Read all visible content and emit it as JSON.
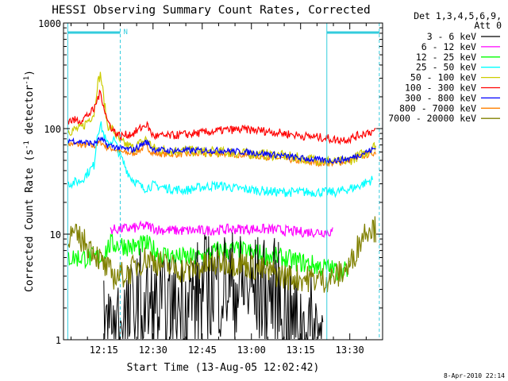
{
  "chart_data": {
    "type": "line",
    "title": "HESSI Observing Summary Count Rates, Corrected",
    "xlabel": "Start Time (13-Aug-05 12:02:42)",
    "ylabel_main": "Corrected Count Rate (s",
    "ylabel_sup1": "-1",
    "ylabel_mid": " detector",
    "ylabel_sup2": "-1",
    "ylabel_end": ")",
    "yscale": "log",
    "ylim": [
      1,
      1000
    ],
    "xlim": [
      "12:02:42",
      "13:40:00"
    ],
    "x_ticks": [
      "12:15",
      "12:30",
      "12:45",
      "13:00",
      "13:15",
      "13:30"
    ],
    "y_ticks": [
      "1",
      "10",
      "100",
      "1000"
    ],
    "grid": false,
    "legend_header": [
      "Det 1,3,4,5,6,9,",
      "Att 0"
    ],
    "legend_position": "right",
    "annotations": {
      "night_marker": "N",
      "night_intervals": [
        [
          "12:04",
          "12:20"
        ],
        [
          "13:23",
          "13:39"
        ]
      ],
      "boundary_dashed": [
        "12:20",
        "13:39"
      ],
      "boundary_solid": [
        "12:04",
        "13:23"
      ]
    },
    "footer_date": "8-Apr-2010 22:14",
    "series": [
      {
        "name": "3 - 6 keV",
        "color": "#000000",
        "x": [
          "12:15",
          "12:18",
          "12:22",
          "12:26",
          "12:30",
          "12:35",
          "12:40",
          "12:44",
          "12:48",
          "12:52",
          "12:56",
          "13:00",
          "13:04",
          "13:08",
          "13:12",
          "13:15",
          "13:19",
          "13:22"
        ],
        "y": [
          1.2,
          1.4,
          1.5,
          2.2,
          1.8,
          1.7,
          2.3,
          2.6,
          3.4,
          3.4,
          3.1,
          3.0,
          2.8,
          2.6,
          1.4,
          1.3,
          1.2,
          1.2
        ]
      },
      {
        "name": "6 - 12 keV",
        "color": "#ff00ff",
        "x": [
          "12:17",
          "12:20",
          "12:25",
          "12:28",
          "12:32",
          "12:38",
          "12:44",
          "12:50",
          "12:56",
          "13:02",
          "13:08",
          "13:14",
          "13:20",
          "13:25"
        ],
        "y": [
          11,
          11.2,
          11.5,
          12,
          11,
          10.8,
          10.8,
          11,
          11.2,
          11.2,
          11,
          10.5,
          10.5,
          10.5
        ]
      },
      {
        "name": "12 - 25 keV",
        "color": "#00ff00",
        "x": [
          "12:04",
          "12:10",
          "12:14",
          "12:17",
          "12:20",
          "12:24",
          "12:28",
          "12:32",
          "12:38",
          "12:44",
          "12:50",
          "12:56",
          "13:02",
          "13:08",
          "13:14",
          "13:20",
          "13:26",
          "13:30"
        ],
        "y": [
          6,
          6,
          6,
          8,
          8,
          7.5,
          8,
          6.5,
          6,
          6,
          7,
          7,
          6.5,
          6,
          5.5,
          5,
          4.5,
          4.5
        ]
      },
      {
        "name": "25 - 50 keV",
        "color": "#00ffff",
        "x": [
          "12:04",
          "12:08",
          "12:12",
          "12:13",
          "12:14",
          "12:16",
          "12:18",
          "12:20",
          "12:23",
          "12:27",
          "12:30",
          "12:35",
          "12:40",
          "12:45",
          "12:50",
          "12:56",
          "13:02",
          "13:08",
          "13:14",
          "13:20",
          "13:26",
          "13:32",
          "13:37"
        ],
        "y": [
          30,
          32,
          45,
          90,
          110,
          70,
          80,
          55,
          35,
          27,
          29,
          27,
          26,
          28,
          29,
          27,
          26,
          25,
          25,
          25,
          25,
          28,
          33
        ]
      },
      {
        "name": "50 - 100 keV",
        "color": "#cccc00",
        "x": [
          "12:04",
          "12:08",
          "12:12",
          "12:13",
          "12:14",
          "12:16",
          "12:18",
          "12:20",
          "12:24",
          "12:28",
          "12:30",
          "12:34",
          "12:40",
          "12:46",
          "12:52",
          "12:58",
          "13:04",
          "13:10",
          "13:16",
          "13:22",
          "13:26",
          "13:30",
          "13:35",
          "13:38"
        ],
        "y": [
          95,
          100,
          140,
          260,
          330,
          110,
          95,
          75,
          65,
          80,
          65,
          62,
          62,
          60,
          60,
          58,
          57,
          55,
          52,
          50,
          48,
          50,
          60,
          70
        ]
      },
      {
        "name": "100 - 300 keV",
        "color": "#ff0000",
        "x": [
          "12:04",
          "12:08",
          "12:12",
          "12:13",
          "12:14",
          "12:16",
          "12:18",
          "12:20",
          "12:24",
          "12:28",
          "12:30",
          "12:34",
          "12:40",
          "12:46",
          "12:52",
          "12:58",
          "13:04",
          "13:10",
          "13:16",
          "13:22",
          "13:26",
          "13:30",
          "13:35",
          "13:38"
        ],
        "y": [
          120,
          120,
          150,
          190,
          220,
          120,
          95,
          85,
          90,
          110,
          85,
          85,
          88,
          92,
          97,
          98,
          95,
          90,
          85,
          82,
          78,
          80,
          92,
          95
        ]
      },
      {
        "name": "300 - 800 keV",
        "color": "#0000ff",
        "x": [
          "12:04",
          "12:08",
          "12:12",
          "12:14",
          "12:16",
          "12:18",
          "12:20",
          "12:24",
          "12:28",
          "12:30",
          "12:34",
          "12:40",
          "12:46",
          "12:52",
          "12:58",
          "13:04",
          "13:10",
          "13:16",
          "13:22",
          "13:26",
          "13:30",
          "13:35",
          "13:38"
        ],
        "y": [
          78,
          75,
          72,
          80,
          70,
          68,
          65,
          63,
          75,
          64,
          62,
          62,
          62,
          62,
          60,
          58,
          55,
          52,
          50,
          50,
          52,
          60,
          65
        ]
      },
      {
        "name": "800 - 7000 keV",
        "color": "#ff8000",
        "x": [
          "12:04",
          "12:08",
          "12:12",
          "12:14",
          "12:16",
          "12:18",
          "12:20",
          "12:24",
          "12:28",
          "12:30",
          "12:34",
          "12:40",
          "12:46",
          "12:52",
          "12:58",
          "13:04",
          "13:10",
          "13:16",
          "13:22",
          "13:26",
          "13:30",
          "13:35",
          "13:38"
        ],
        "y": [
          72,
          70,
          68,
          75,
          66,
          64,
          60,
          58,
          68,
          58,
          57,
          57,
          58,
          58,
          56,
          54,
          52,
          48,
          47,
          47,
          50,
          56,
          60
        ]
      },
      {
        "name": "7000 - 20000 keV",
        "color": "#808000",
        "x": [
          "12:04",
          "12:08",
          "12:12",
          "12:15",
          "12:18",
          "12:22",
          "12:28",
          "12:34",
          "12:40",
          "12:46",
          "12:52",
          "12:58",
          "13:04",
          "13:10",
          "13:16",
          "13:22",
          "13:26",
          "13:30",
          "13:34",
          "13:36",
          "13:38"
        ],
        "y": [
          10,
          9,
          7,
          5,
          4,
          4.2,
          6,
          5,
          4.5,
          5,
          5.5,
          5.2,
          4.5,
          4,
          3.8,
          3.7,
          4,
          5,
          10,
          12,
          11
        ]
      }
    ]
  }
}
